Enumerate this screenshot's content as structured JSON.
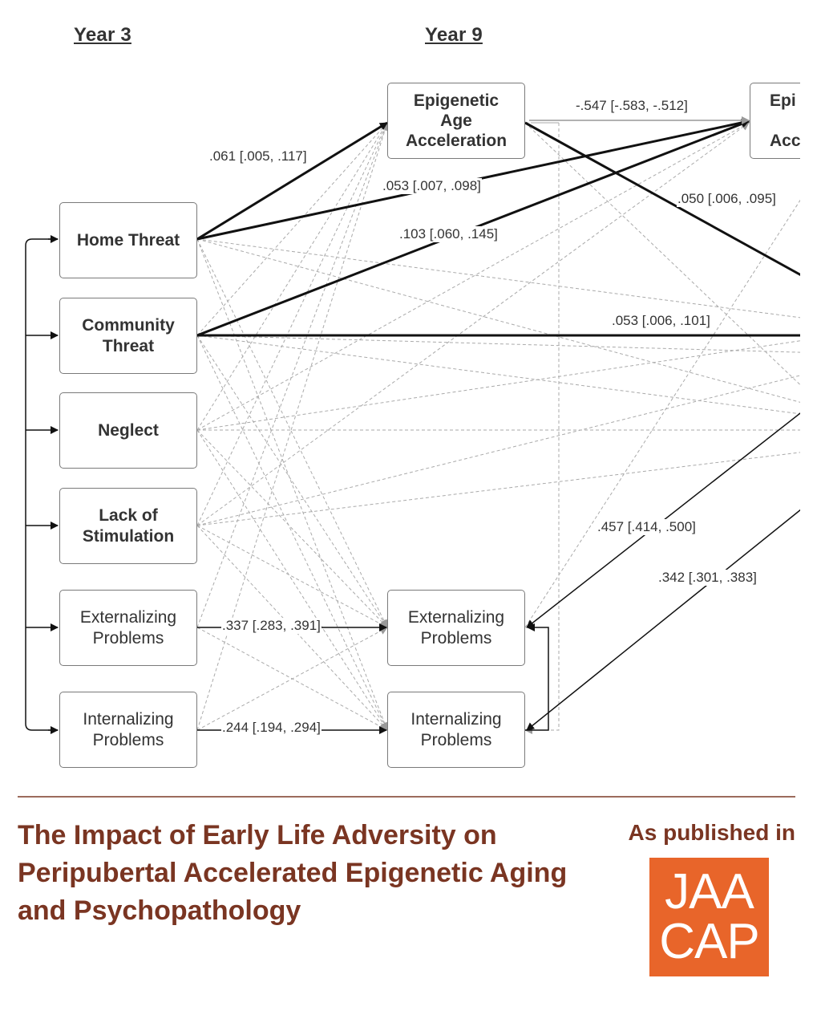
{
  "diagram": {
    "columns": {
      "year3": "Year 3",
      "year9": "Year 9"
    },
    "nodes": {
      "home_threat": "Home Threat",
      "community_threat": "Community\nThreat",
      "neglect": "Neglect",
      "lack_of_stimulation": "Lack of\nStimulation",
      "externalizing_y3": "Externalizing\nProblems",
      "internalizing_y3": "Internalizing\nProblems",
      "epigenetic_age_acceleration_y9": "Epigenetic\nAge\nAcceleration",
      "externalizing_y9": "Externalizing\nProblems",
      "internalizing_y9": "Internalizing\nProblems",
      "epigenetic_cut_off": "Epi\n\nAcc"
    },
    "coefficients": {
      "home_to_epi9": ".061 [.005, .117]",
      "home_to_epi_right": ".053 [.007, .098]",
      "community_to_epi_right": ".103 [.060, .145]",
      "epi9_epi_right": "-.547 [-.583, -.512]",
      "epi9_to_right": ".050 [.006, .095]",
      "community_to_right": ".053 [.006, .101]",
      "right_to_ext9": ".457 [.414, .500]",
      "right_to_int9": ".342 [.301, .383]",
      "ext3_to_ext9": ".337 [.283, .391]",
      "int3_to_int9": ".244 [.194, .294]"
    }
  },
  "footer": {
    "title": "The Impact of Early Life Adversity on Peripubertal Accelerated Epigenetic Aging and Psychopathology",
    "published_label": "As published in",
    "logo_line1": "JAA",
    "logo_line2": "CAP",
    "colors": {
      "title": "#7a3522",
      "logo_bg": "#e8652a"
    }
  }
}
